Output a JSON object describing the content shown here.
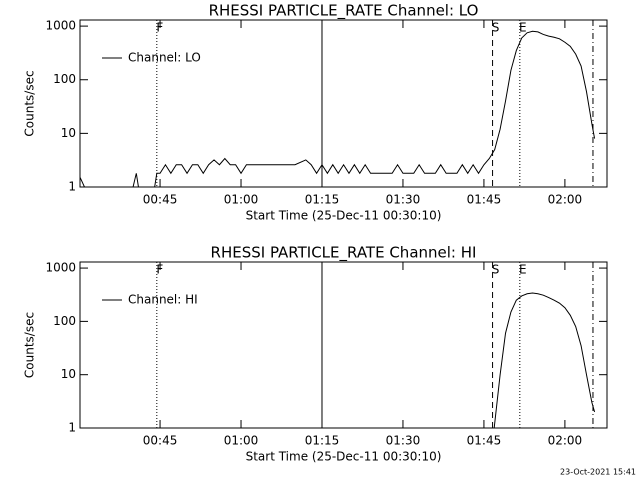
{
  "chart_data": [
    {
      "type": "line",
      "title": "RHESSI PARTICLE_RATE Channel: LO",
      "y_label": "Counts/sec",
      "x_label": "Start Time (25-Dec-11 00:30:10)",
      "ylog": true,
      "ylim": [
        1,
        1300
      ],
      "yticks": [
        1,
        10,
        100,
        1000
      ],
      "xlim": [
        30.17,
        127.8
      ],
      "xticks": [
        {
          "value": 45,
          "label": "00:45"
        },
        {
          "value": 60,
          "label": "01:00"
        },
        {
          "value": 75,
          "label": "01:15"
        },
        {
          "value": 90,
          "label": "01:30"
        },
        {
          "value": 105,
          "label": "01:45"
        },
        {
          "value": 120,
          "label": "02:00"
        }
      ],
      "legend": "upper left",
      "markers": [
        {
          "x": 44.4,
          "label": "F",
          "style": "dotted"
        },
        {
          "x": 75,
          "style": "solid"
        },
        {
          "x": 106.6,
          "label": "S",
          "style": "dashed"
        },
        {
          "x": 111.65,
          "label": "E",
          "style": "dotted"
        },
        {
          "x": 125.2,
          "style": "dashdot"
        }
      ],
      "x": [
        30.2,
        31,
        40,
        40.6,
        41,
        44,
        44.4,
        45,
        46,
        47,
        48,
        49,
        50,
        51,
        52,
        53,
        54,
        55,
        56,
        57,
        58,
        59,
        60,
        61,
        62,
        64,
        66,
        68,
        70,
        72,
        73,
        74,
        75,
        76,
        77,
        78,
        79,
        80,
        81,
        82,
        83,
        84,
        85,
        88,
        89,
        90,
        92,
        93,
        94,
        96,
        97,
        98,
        100,
        101,
        102,
        103,
        104,
        105,
        106,
        107,
        108,
        109,
        110,
        111,
        112,
        113,
        114,
        115,
        116,
        117,
        118,
        119,
        120,
        121,
        122,
        123,
        124,
        125,
        125.5
      ],
      "series": [
        {
          "name": "Channel: LO",
          "color": "#000000",
          "values": [
            1.5,
            1,
            1,
            1.8,
            1,
            1,
            1.8,
            1.8,
            2.6,
            1.8,
            2.6,
            2.6,
            1.8,
            2.6,
            2.6,
            1.8,
            2.6,
            3.2,
            2.6,
            3.4,
            2.6,
            2.6,
            1.8,
            2.6,
            2.6,
            2.6,
            2.6,
            2.6,
            2.6,
            3.2,
            2.6,
            1.8,
            2.6,
            1.8,
            2.6,
            1.8,
            2.6,
            1.8,
            2.6,
            1.8,
            2.6,
            1.8,
            1.8,
            1.8,
            2.6,
            1.8,
            1.8,
            2.6,
            1.8,
            1.8,
            2.6,
            1.8,
            1.8,
            2.6,
            1.8,
            2.6,
            1.8,
            2.6,
            3.4,
            5,
            12,
            40,
            150,
            350,
            600,
            750,
            800,
            780,
            700,
            650,
            620,
            580,
            500,
            420,
            300,
            180,
            60,
            15,
            8
          ]
        }
      ]
    },
    {
      "type": "line",
      "title": "RHESSI PARTICLE_RATE Channel: HI",
      "y_label": "Counts/sec",
      "x_label": "Start Time (25-Dec-11 00:30:10)",
      "ylog": true,
      "ylim": [
        1,
        1300
      ],
      "yticks": [
        1,
        10,
        100,
        1000
      ],
      "xlim": [
        30.17,
        127.8
      ],
      "xticks": [
        {
          "value": 45,
          "label": "00:45"
        },
        {
          "value": 60,
          "label": "01:00"
        },
        {
          "value": 75,
          "label": "01:15"
        },
        {
          "value": 90,
          "label": "01:30"
        },
        {
          "value": 105,
          "label": "01:45"
        },
        {
          "value": 120,
          "label": "02:00"
        }
      ],
      "legend": "upper left",
      "markers": [
        {
          "x": 44.4,
          "label": "F",
          "style": "dotted"
        },
        {
          "x": 75,
          "style": "solid"
        },
        {
          "x": 106.6,
          "label": "S",
          "style": "dashed"
        },
        {
          "x": 111.65,
          "label": "E",
          "style": "dotted"
        },
        {
          "x": 125.2,
          "style": "dashdot"
        }
      ],
      "x": [
        106.9,
        108,
        109,
        110,
        111,
        112,
        113,
        114,
        115,
        116,
        117,
        118,
        119,
        120,
        121,
        122,
        123,
        124,
        125,
        125.5
      ],
      "series": [
        {
          "name": "Channel: HI",
          "color": "#000000",
          "values": [
            1,
            10,
            60,
            150,
            250,
            300,
            330,
            340,
            330,
            310,
            280,
            250,
            220,
            180,
            130,
            80,
            35,
            10,
            3,
            2
          ]
        }
      ]
    }
  ],
  "footer": "23-Oct-2021 15:41"
}
